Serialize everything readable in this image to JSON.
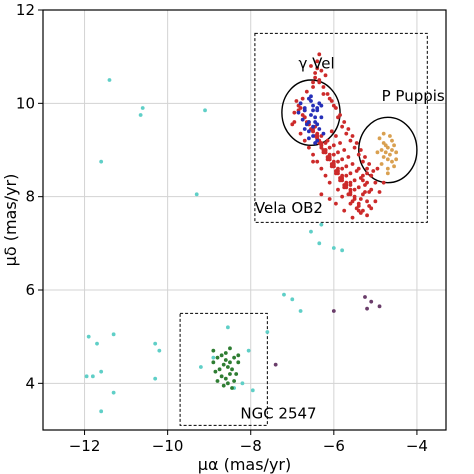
{
  "chart_data": {
    "type": "scatter",
    "title": "",
    "xlabel": "μα (mas/yr)",
    "ylabel": "μδ (mas/yr)",
    "xlim": [
      -13,
      -3.3
    ],
    "ylim": [
      3,
      12
    ],
    "xticks": [
      -12,
      -10,
      -8,
      -6,
      -4
    ],
    "yticks": [
      4,
      6,
      8,
      10,
      12
    ],
    "grid": true,
    "colors": {
      "field": "#5fcfc7",
      "vela_ob2": "#cc2a2a",
      "gamma_vel": "#2630b8",
      "p_puppis": "#d9a050",
      "ngc2547": "#2e7d32",
      "purple": "#6a3d6a"
    },
    "annotations": [
      {
        "text": "γ Vel",
        "x": -6.85,
        "y": 10.75
      },
      {
        "text": "P Puppis",
        "x": -4.85,
        "y": 10.05
      },
      {
        "text": "Vela OB2",
        "x": -7.9,
        "y": 7.65
      },
      {
        "text": "NGC 2547",
        "x": -8.25,
        "y": 3.25
      }
    ],
    "regions": [
      {
        "type": "rect",
        "x0": -7.9,
        "x1": -3.75,
        "y0": 7.45,
        "y1": 11.5
      },
      {
        "type": "rect",
        "x0": -9.7,
        "x1": -7.6,
        "y0": 3.1,
        "y1": 5.5
      },
      {
        "type": "ellipse",
        "cx": -6.55,
        "cy": 9.8,
        "rx": 0.7,
        "ry": 0.7
      },
      {
        "type": "ellipse",
        "cx": -4.7,
        "cy": 9.0,
        "rx": 0.7,
        "ry": 0.7
      }
    ],
    "series": [
      {
        "group": "field",
        "x": [
          -11.4,
          -10.6,
          -10.65,
          -9.1,
          -11.6,
          -9.3,
          -11.9,
          -11.7,
          -11.3,
          -11.6,
          -11.8,
          -10.3,
          -10.2,
          -10.3,
          -11.95,
          -11.6,
          -11.3,
          -6.3,
          -6.35,
          -6.55,
          -6.0,
          -5.8,
          -7.2,
          -7.0,
          -6.8,
          -7.6,
          -9.2,
          -8.9,
          -8.4,
          -8.2,
          -7.95,
          -8.05,
          -8.55
        ],
        "y": [
          10.5,
          9.9,
          9.75,
          9.85,
          8.75,
          8.05,
          5.0,
          4.85,
          5.05,
          4.25,
          4.15,
          4.85,
          4.7,
          4.1,
          4.15,
          3.4,
          3.8,
          7.4,
          7.0,
          7.25,
          6.9,
          6.85,
          5.9,
          5.8,
          5.55,
          5.1,
          4.35,
          4.55,
          3.9,
          4.0,
          3.85,
          4.7,
          5.2
        ]
      },
      {
        "group": "vela_ob2",
        "x": [
          -6.4,
          -6.35,
          -6.3,
          -6.2,
          -6.5,
          -6.1,
          -6.0,
          -6.25,
          -5.9,
          -5.8,
          -5.7,
          -5.6,
          -5.5,
          -5.4,
          -5.3,
          -5.2,
          -5.1,
          -6.05,
          -5.95,
          -5.85,
          -5.75,
          -5.65,
          -5.55,
          -5.45,
          -5.35,
          -5.25,
          -5.15,
          -6.15,
          -6.0,
          -5.9,
          -5.8,
          -5.7,
          -5.6,
          -5.5,
          -5.4,
          -5.3,
          -5.2,
          -5.1,
          -5.0,
          -6.2,
          -6.1,
          -6.0,
          -5.9,
          -5.8,
          -5.7,
          -5.6,
          -5.5,
          -5.4,
          -5.3,
          -5.2,
          -6.3,
          -6.2,
          -6.1,
          -6.0,
          -5.9,
          -5.8,
          -5.7,
          -5.6,
          -5.5,
          -5.4,
          -5.3,
          -5.2,
          -5.1,
          -6.45,
          -6.4,
          -6.35,
          -6.3,
          -6.25,
          -6.15,
          -6.05,
          -5.95,
          -5.85,
          -5.75,
          -5.65,
          -5.55,
          -5.45,
          -5.35,
          -5.25,
          -6.6,
          -6.5,
          -6.4,
          -6.3,
          -6.2,
          -6.1,
          -6.0,
          -5.9,
          -5.8,
          -5.7,
          -5.6,
          -5.5,
          -5.4,
          -6.7,
          -6.6,
          -6.5,
          -6.4,
          -6.3,
          -6.2,
          -6.1,
          -6.0,
          -5.9,
          -5.8,
          -5.7,
          -5.6,
          -6.8,
          -6.75,
          -6.65,
          -6.55,
          -6.45,
          -6.35,
          -6.25,
          -6.15,
          -6.05,
          -5.95,
          -5.85,
          -5.75,
          -6.9,
          -6.85,
          -6.7,
          -6.6,
          -6.5,
          -6.4,
          -6.3,
          -6.2,
          -6.1,
          -6.0,
          -6.95,
          -6.8,
          -6.7,
          -6.6,
          -6.5,
          -6.4,
          -6.3,
          -6.2,
          -6.1,
          -5.8,
          -5.6,
          -5.4,
          -5.2,
          -5.0,
          -4.9,
          -4.8,
          -5.05,
          -5.15,
          -5.25,
          -5.35,
          -5.45,
          -5.55,
          -5.65,
          -5.75,
          -5.85,
          -5.95,
          -6.05,
          -6.15,
          -6.25,
          -6.35,
          -6.45,
          -6.55,
          -6.65,
          -6.75,
          -6.85,
          -6.95,
          -7.0,
          -6.5,
          -6.45,
          -6.4,
          -6.35,
          -5.9,
          -5.6,
          -5.3,
          -5.1,
          -4.95,
          -5.15,
          -5.35,
          -5.55,
          -5.75,
          -5.95,
          -6.1,
          -6.3,
          -6.5,
          -6.7
        ],
        "y": [
          10.9,
          11.05,
          10.7,
          10.6,
          10.45,
          10.1,
          9.95,
          10.2,
          9.7,
          9.5,
          9.35,
          9.2,
          9.05,
          8.9,
          8.75,
          8.6,
          8.45,
          9.4,
          9.3,
          9.15,
          9.0,
          8.85,
          8.7,
          8.55,
          8.4,
          8.25,
          8.1,
          9.2,
          9.1,
          8.95,
          8.8,
          8.65,
          8.5,
          8.35,
          8.2,
          8.05,
          7.9,
          7.75,
          8.3,
          9.0,
          8.9,
          8.75,
          8.6,
          8.45,
          8.3,
          8.15,
          8.0,
          7.85,
          7.7,
          8.5,
          9.3,
          9.15,
          9.05,
          8.9,
          8.75,
          8.6,
          8.45,
          8.3,
          8.15,
          8.6,
          8.45,
          8.3,
          8.15,
          9.5,
          9.35,
          9.2,
          9.05,
          8.95,
          8.8,
          8.65,
          8.5,
          8.35,
          8.2,
          8.05,
          7.9,
          7.75,
          7.95,
          8.1,
          9.6,
          9.45,
          9.3,
          9.15,
          9.0,
          8.85,
          8.7,
          8.55,
          8.4,
          8.25,
          8.1,
          7.95,
          7.8,
          9.7,
          9.55,
          9.4,
          9.25,
          9.1,
          8.95,
          8.8,
          8.65,
          8.5,
          8.35,
          8.2,
          8.05,
          9.9,
          9.75,
          9.6,
          9.45,
          9.3,
          9.15,
          9.0,
          8.85,
          8.7,
          8.55,
          8.4,
          8.25,
          10.05,
          9.85,
          9.7,
          9.55,
          9.4,
          9.25,
          9.1,
          8.95,
          8.8,
          8.65,
          9.6,
          9.35,
          9.2,
          9.05,
          8.9,
          8.75,
          8.6,
          8.45,
          8.3,
          8.0,
          7.85,
          7.7,
          7.6,
          7.9,
          8.1,
          8.3,
          8.55,
          8.7,
          8.85,
          9.0,
          9.15,
          9.3,
          9.45,
          9.6,
          9.75,
          9.9,
          10.05,
          10.2,
          10.35,
          10.5,
          10.65,
          10.8,
          10.25,
          10.1,
          9.95,
          9.8,
          9.55,
          10.35,
          10.55,
          10.75,
          10.45,
          8.15,
          8.25,
          8.35,
          8.45,
          8.6,
          7.8,
          7.65,
          7.55,
          7.7,
          7.85,
          7.95,
          8.05,
          8.75,
          9.85
        ],
        "size": 3
      },
      {
        "group": "gamma_vel",
        "x": [
          -6.8,
          -6.7,
          -6.6,
          -6.5,
          -6.4,
          -6.3,
          -6.75,
          -6.65,
          -6.55,
          -6.45,
          -6.35,
          -6.25,
          -6.6,
          -6.5,
          -6.4,
          -6.7,
          -6.55,
          -6.45,
          -6.35,
          -6.6,
          -6.5,
          -6.4,
          -6.85,
          -6.3,
          -6.5,
          -6.6,
          -6.45,
          -6.55,
          -6.4,
          -6.7
        ],
        "y": [
          10.0,
          9.9,
          10.1,
          9.95,
          9.85,
          9.7,
          9.65,
          9.55,
          9.75,
          9.6,
          9.45,
          9.35,
          9.4,
          9.3,
          9.2,
          9.85,
          10.05,
          9.7,
          10.0,
          9.6,
          9.5,
          9.55,
          9.8,
          9.95,
          9.85,
          9.25,
          9.15,
          10.15,
          9.9,
          9.45
        ],
        "size": 3
      },
      {
        "group": "p_puppis",
        "x": [
          -4.9,
          -4.8,
          -4.7,
          -4.6,
          -4.85,
          -4.75,
          -4.65,
          -4.55,
          -4.7,
          -4.6,
          -4.8,
          -4.5,
          -4.75,
          -4.65,
          -4.85,
          -4.55,
          -4.7,
          -4.6,
          -4.95,
          -4.5,
          -4.8,
          -4.7
        ],
        "y": [
          9.25,
          9.15,
          9.05,
          9.2,
          9.0,
          8.95,
          8.9,
          9.1,
          8.8,
          8.75,
          8.85,
          8.95,
          9.1,
          9.3,
          8.7,
          8.65,
          8.6,
          9.0,
          8.95,
          8.8,
          9.35,
          8.5
        ],
        "size": 3
      },
      {
        "group": "ngc2547",
        "x": [
          -8.9,
          -8.8,
          -8.7,
          -8.6,
          -8.5,
          -8.4,
          -8.3,
          -8.85,
          -8.75,
          -8.65,
          -8.55,
          -8.45,
          -8.35,
          -8.8,
          -8.7,
          -8.6,
          -8.5,
          -8.4,
          -8.65,
          -8.55,
          -8.45,
          -8.9,
          -8.3,
          -8.6,
          -8.5
        ],
        "y": [
          4.45,
          4.55,
          4.6,
          4.65,
          4.75,
          4.55,
          4.45,
          4.25,
          4.3,
          4.4,
          4.35,
          4.3,
          4.2,
          4.05,
          4.15,
          4.1,
          4.2,
          4.05,
          3.95,
          4.0,
          3.9,
          4.7,
          4.6,
          4.5,
          4.45
        ],
        "size": 3
      },
      {
        "group": "purple",
        "x": [
          -5.25,
          -5.1,
          -4.9,
          -5.2,
          -6.0,
          -7.4
        ],
        "y": [
          5.85,
          5.75,
          5.65,
          5.6,
          5.55,
          4.4
        ],
        "size": 3
      }
    ]
  }
}
